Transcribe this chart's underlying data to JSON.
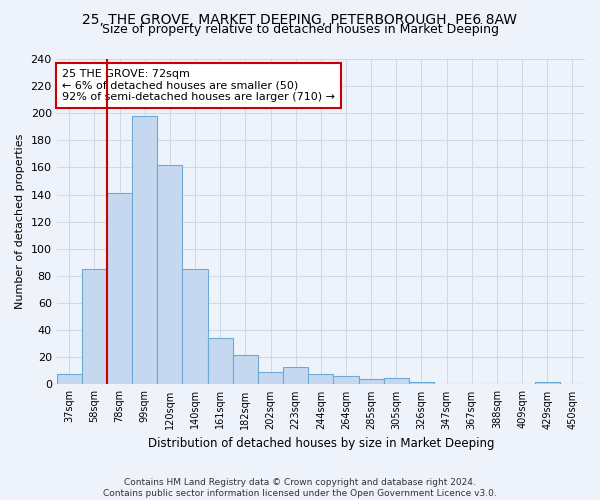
{
  "title1": "25, THE GROVE, MARKET DEEPING, PETERBOROUGH, PE6 8AW",
  "title2": "Size of property relative to detached houses in Market Deeping",
  "xlabel": "Distribution of detached houses by size in Market Deeping",
  "ylabel": "Number of detached properties",
  "categories": [
    "37sqm",
    "58sqm",
    "78sqm",
    "99sqm",
    "120sqm",
    "140sqm",
    "161sqm",
    "182sqm",
    "202sqm",
    "223sqm",
    "244sqm",
    "264sqm",
    "285sqm",
    "305sqm",
    "326sqm",
    "347sqm",
    "367sqm",
    "388sqm",
    "409sqm",
    "429sqm",
    "450sqm"
  ],
  "values": [
    8,
    85,
    141,
    198,
    162,
    85,
    34,
    22,
    9,
    13,
    8,
    6,
    4,
    5,
    2,
    0,
    0,
    0,
    0,
    2,
    0
  ],
  "bar_color": "#c5d8f0",
  "bar_edgecolor": "#6aaad4",
  "vline_color": "#cc0000",
  "annotation_text": "25 THE GROVE: 72sqm\n← 6% of detached houses are smaller (50)\n92% of semi-detached houses are larger (710) →",
  "annotation_bbox_edgecolor": "#cc0000",
  "annotation_bbox_facecolor": "#ffffff",
  "ylim": [
    0,
    240
  ],
  "yticks": [
    0,
    20,
    40,
    60,
    80,
    100,
    120,
    140,
    160,
    180,
    200,
    220,
    240
  ],
  "footer1": "Contains HM Land Registry data © Crown copyright and database right 2024.",
  "footer2": "Contains public sector information licensed under the Open Government Licence v3.0.",
  "bg_color": "#eef2fa",
  "title1_fontsize": 10,
  "title2_fontsize": 9,
  "grid_color": "#d0d8e8"
}
